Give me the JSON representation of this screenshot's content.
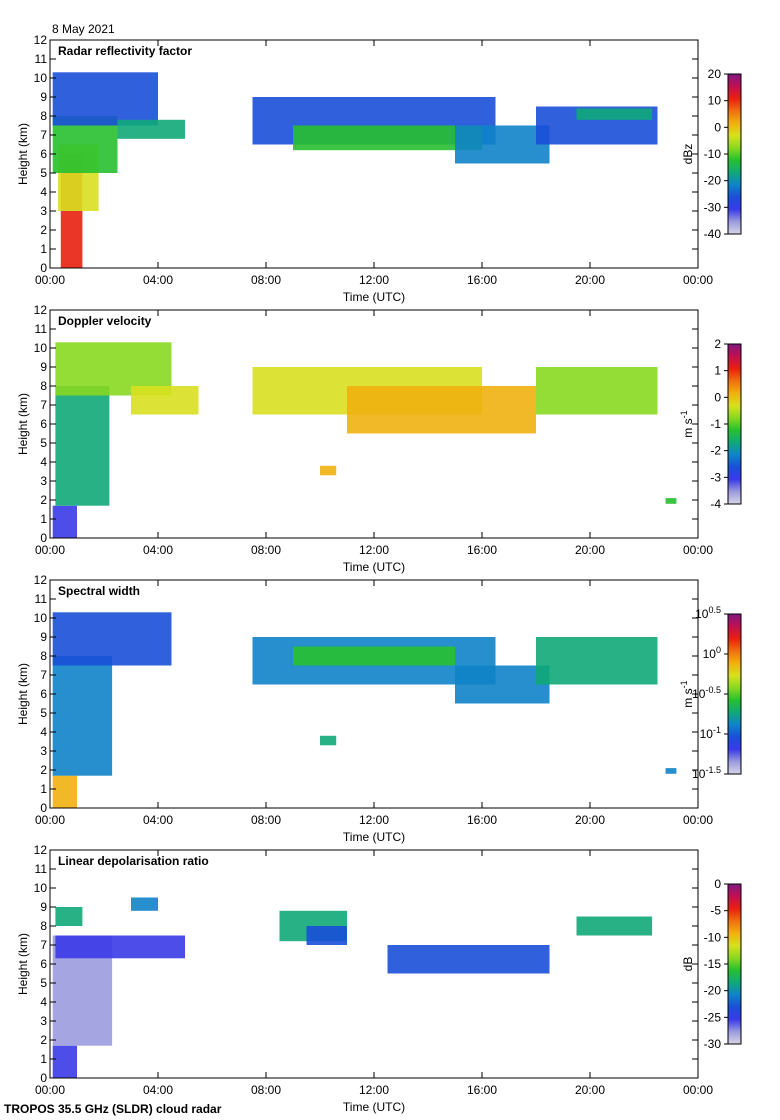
{
  "date_label": "8 May 2021",
  "footer": "TROPOS 35.5 GHz (SLDR) cloud radar",
  "colors": {
    "cmap": [
      "#d7d4e6",
      "#9b9bde",
      "#3a3ae8",
      "#1a4fd8",
      "#0f83c8",
      "#10a878",
      "#28c030",
      "#88d820",
      "#d8e020",
      "#f0b010",
      "#f07010",
      "#e82010",
      "#c01050",
      "#801880"
    ]
  },
  "chart_data": [
    {
      "type": "heatmap",
      "title": "Radar reflectivity factor",
      "xlabel": "Time (UTC)",
      "ylabel": "Height (km)",
      "xlim": [
        "00:00",
        "00:00"
      ],
      "xticks": [
        "00:00",
        "04:00",
        "08:00",
        "12:00",
        "16:00",
        "20:00",
        "00:00"
      ],
      "ylim": [
        0,
        12
      ],
      "yticks": [
        "0",
        "1",
        "2",
        "3",
        "4",
        "5",
        "6",
        "7",
        "8",
        "9",
        "10",
        "11",
        "12"
      ],
      "colorbar": {
        "label": "dBz",
        "range": [
          -40,
          20
        ],
        "ticks": [
          "20",
          "10",
          "0",
          "-10",
          "-20",
          "-30",
          "-40"
        ]
      },
      "bands": [
        {
          "t": [
            0.4,
            1.2
          ],
          "z": [
            0.0,
            6.0
          ],
          "c": 11
        },
        {
          "t": [
            0.3,
            1.8
          ],
          "z": [
            3.0,
            6.5
          ],
          "c": 8
        },
        {
          "t": [
            0.1,
            2.5
          ],
          "z": [
            5.0,
            8.0
          ],
          "c": 6
        },
        {
          "t": [
            0.1,
            4.0
          ],
          "z": [
            7.5,
            10.3
          ],
          "c": 3
        },
        {
          "t": [
            2.5,
            5.0
          ],
          "z": [
            6.8,
            7.8
          ],
          "c": 5
        },
        {
          "t": [
            7.5,
            16.5
          ],
          "z": [
            6.5,
            9.0
          ],
          "c": 3
        },
        {
          "t": [
            9.0,
            16.0
          ],
          "z": [
            6.2,
            7.5
          ],
          "c": 6
        },
        {
          "t": [
            15.0,
            18.5
          ],
          "z": [
            5.5,
            7.5
          ],
          "c": 4
        },
        {
          "t": [
            18.0,
            22.5
          ],
          "z": [
            6.5,
            8.5
          ],
          "c": 3
        },
        {
          "t": [
            19.5,
            22.3
          ],
          "z": [
            7.8,
            8.4
          ],
          "c": 5
        }
      ]
    },
    {
      "type": "heatmap",
      "title": "Doppler velocity",
      "xlabel": "Time (UTC)",
      "ylabel": "Height (km)",
      "xlim": [
        "00:00",
        "00:00"
      ],
      "xticks": [
        "00:00",
        "04:00",
        "08:00",
        "12:00",
        "16:00",
        "20:00",
        "00:00"
      ],
      "ylim": [
        0,
        12
      ],
      "yticks": [
        "0",
        "1",
        "2",
        "3",
        "4",
        "5",
        "6",
        "7",
        "8",
        "9",
        "10",
        "11",
        "12"
      ],
      "colorbar": {
        "label": "m s-1",
        "range": [
          -4,
          2
        ],
        "ticks": [
          "2",
          "1",
          "0",
          "-1",
          "-2",
          "-3",
          "-4"
        ]
      },
      "bands": [
        {
          "t": [
            0.1,
            1.0
          ],
          "z": [
            0.0,
            1.7
          ],
          "c": 2
        },
        {
          "t": [
            0.2,
            2.2
          ],
          "z": [
            1.7,
            8.0
          ],
          "c": 5
        },
        {
          "t": [
            0.2,
            4.5
          ],
          "z": [
            7.5,
            10.3
          ],
          "c": 7
        },
        {
          "t": [
            3.0,
            5.5
          ],
          "z": [
            6.5,
            8.0
          ],
          "c": 8
        },
        {
          "t": [
            7.5,
            16.0
          ],
          "z": [
            6.5,
            9.0
          ],
          "c": 8
        },
        {
          "t": [
            11.0,
            18.0
          ],
          "z": [
            5.5,
            8.0
          ],
          "c": 9
        },
        {
          "t": [
            18.0,
            22.5
          ],
          "z": [
            6.5,
            9.0
          ],
          "c": 7
        },
        {
          "t": [
            10.0,
            10.6
          ],
          "z": [
            3.3,
            3.8
          ],
          "c": 9
        },
        {
          "t": [
            22.8,
            23.2
          ],
          "z": [
            1.8,
            2.1
          ],
          "c": 6
        }
      ]
    },
    {
      "type": "heatmap",
      "title": "Spectral width",
      "xlabel": "Time (UTC)",
      "ylabel": "Height (km)",
      "xlim": [
        "00:00",
        "00:00"
      ],
      "xticks": [
        "00:00",
        "04:00",
        "08:00",
        "12:00",
        "16:00",
        "20:00",
        "00:00"
      ],
      "ylim": [
        0,
        12
      ],
      "yticks": [
        "0",
        "1",
        "2",
        "3",
        "4",
        "5",
        "6",
        "7",
        "8",
        "9",
        "10",
        "11",
        "12"
      ],
      "colorbar": {
        "label": "m s-1",
        "range": [
          -1.5,
          0.5
        ],
        "ticks": [
          "10^0.5",
          "10^0",
          "10^-0.5",
          "10^-1",
          "10^-1.5"
        ]
      },
      "bands": [
        {
          "t": [
            0.1,
            1.0
          ],
          "z": [
            0.0,
            1.7
          ],
          "c": 9
        },
        {
          "t": [
            0.1,
            2.3
          ],
          "z": [
            1.7,
            8.0
          ],
          "c": 4
        },
        {
          "t": [
            0.1,
            4.5
          ],
          "z": [
            7.5,
            10.3
          ],
          "c": 3
        },
        {
          "t": [
            7.5,
            16.5
          ],
          "z": [
            6.5,
            9.0
          ],
          "c": 4
        },
        {
          "t": [
            9.0,
            15.0
          ],
          "z": [
            7.5,
            8.5
          ],
          "c": 6
        },
        {
          "t": [
            15.0,
            18.5
          ],
          "z": [
            5.5,
            7.5
          ],
          "c": 4
        },
        {
          "t": [
            18.0,
            22.5
          ],
          "z": [
            6.5,
            9.0
          ],
          "c": 5
        },
        {
          "t": [
            10.0,
            10.6
          ],
          "z": [
            3.3,
            3.8
          ],
          "c": 5
        },
        {
          "t": [
            22.8,
            23.2
          ],
          "z": [
            1.8,
            2.1
          ],
          "c": 4
        }
      ]
    },
    {
      "type": "heatmap",
      "title": "Linear depolarisation ratio",
      "xlabel": "Time (UTC)",
      "ylabel": "Height (km)",
      "xlim": [
        "00:00",
        "00:00"
      ],
      "xticks": [
        "00:00",
        "04:00",
        "08:00",
        "12:00",
        "16:00",
        "20:00",
        "00:00"
      ],
      "ylim": [
        0,
        12
      ],
      "yticks": [
        "0",
        "1",
        "2",
        "3",
        "4",
        "5",
        "6",
        "7",
        "8",
        "9",
        "10",
        "11",
        "12"
      ],
      "colorbar": {
        "label": "dB",
        "range": [
          -30,
          0
        ],
        "ticks": [
          "0",
          "-5",
          "-10",
          "-15",
          "-20",
          "-25",
          "-30"
        ]
      },
      "bands": [
        {
          "t": [
            0.1,
            1.0
          ],
          "z": [
            0.0,
            1.7
          ],
          "c": 2
        },
        {
          "t": [
            0.1,
            2.3
          ],
          "z": [
            1.7,
            7.5
          ],
          "c": 1
        },
        {
          "t": [
            0.2,
            5.0
          ],
          "z": [
            6.3,
            7.5
          ],
          "c": 2
        },
        {
          "t": [
            0.2,
            1.2
          ],
          "z": [
            8.0,
            9.0
          ],
          "c": 5
        },
        {
          "t": [
            3.0,
            4.0
          ],
          "z": [
            8.8,
            9.5
          ],
          "c": 4
        },
        {
          "t": [
            8.5,
            11.0
          ],
          "z": [
            7.2,
            8.8
          ],
          "c": 5
        },
        {
          "t": [
            9.5,
            11.0
          ],
          "z": [
            7.0,
            8.0
          ],
          "c": 3
        },
        {
          "t": [
            12.5,
            18.5
          ],
          "z": [
            5.5,
            7.0
          ],
          "c": 3
        },
        {
          "t": [
            19.5,
            22.3
          ],
          "z": [
            7.5,
            8.5
          ],
          "c": 5
        }
      ]
    }
  ]
}
